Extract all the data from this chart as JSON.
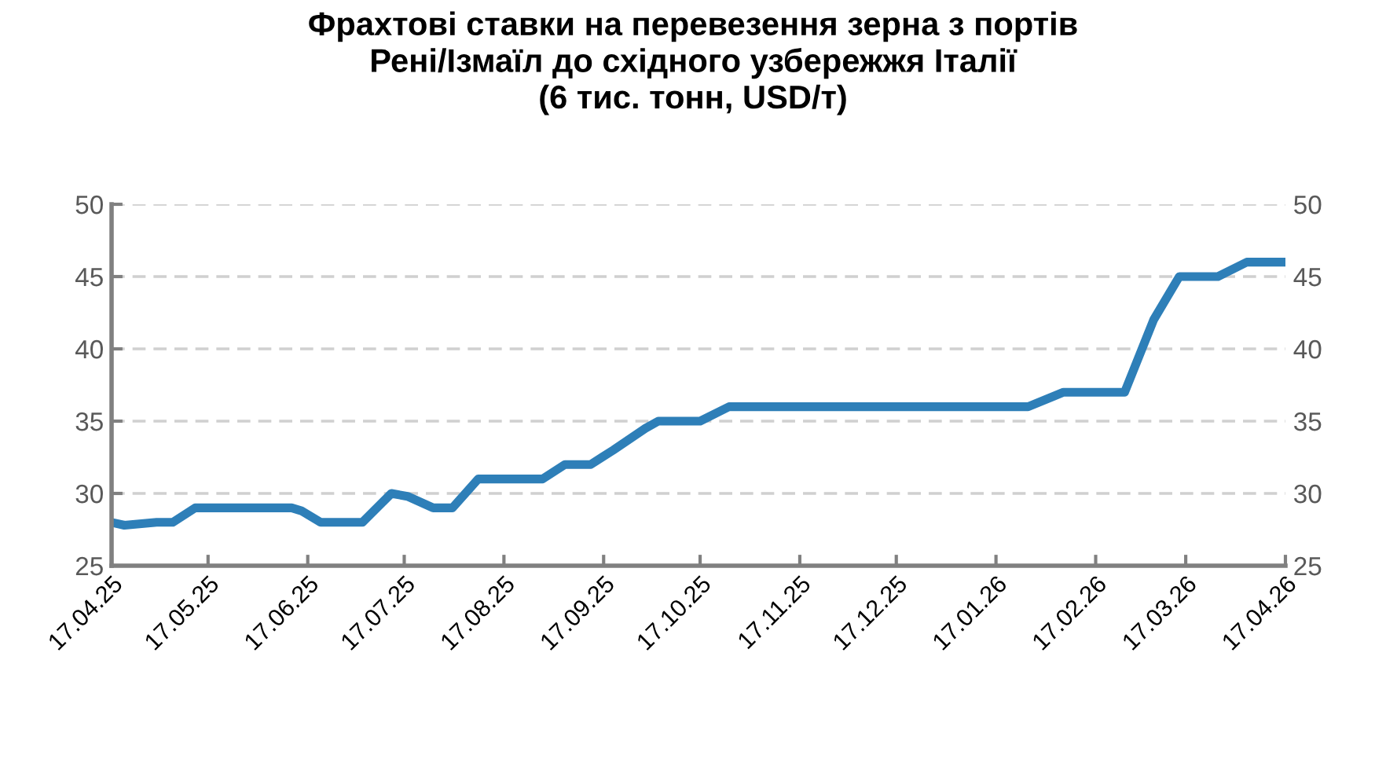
{
  "chart_data": {
    "type": "line",
    "title": "Фрахтові ставки на перевезення зерна з портів\nРені/Ізмаїл до східного узбережжя Італії\n(6 тис. тонн, USD/т)",
    "x": [
      "2025-04-17",
      "2025-04-21",
      "2025-05-01",
      "2025-05-06",
      "2025-05-13",
      "2025-05-26",
      "2025-06-12",
      "2025-06-15",
      "2025-06-21",
      "2025-06-29",
      "2025-07-04",
      "2025-07-13",
      "2025-07-18",
      "2025-07-26",
      "2025-08-01",
      "2025-08-09",
      "2025-08-17",
      "2025-08-29",
      "2025-09-05",
      "2025-09-13",
      "2025-09-20",
      "2025-09-30",
      "2025-10-04",
      "2025-10-17",
      "2025-10-26",
      "2026-01-27",
      "2026-02-07",
      "2026-02-21",
      "2026-02-26",
      "2026-03-07",
      "2026-03-15",
      "2026-03-27",
      "2026-04-05",
      "2026-04-17"
    ],
    "series": [
      {
        "color": "#2e7fb8",
        "values": [
          28,
          27.8,
          28,
          28,
          29,
          29,
          29,
          28.8,
          28,
          28,
          28,
          30,
          29.8,
          29,
          29,
          31,
          31,
          31,
          32,
          32,
          33,
          34.5,
          35,
          35,
          36,
          36,
          37,
          37,
          37,
          42,
          45,
          45,
          46,
          46
        ]
      }
    ],
    "xlim": [
      "2025-04-17",
      "2026-04-17"
    ],
    "xticks": [
      {
        "value": "2025-04-17",
        "label": "17.04.25"
      },
      {
        "value": "2025-05-17",
        "label": "17.05.25"
      },
      {
        "value": "2025-06-17",
        "label": "17.06.25"
      },
      {
        "value": "2025-07-17",
        "label": "17.07.25"
      },
      {
        "value": "2025-08-17",
        "label": "17.08.25"
      },
      {
        "value": "2025-09-17",
        "label": "17.09.25"
      },
      {
        "value": "2025-10-17",
        "label": "17.10.25"
      },
      {
        "value": "2025-11-17",
        "label": "17.11.25"
      },
      {
        "value": "2025-12-17",
        "label": "17.12.25"
      },
      {
        "value": "2026-01-17",
        "label": "17.01.26"
      },
      {
        "value": "2026-02-17",
        "label": "17.02.26"
      },
      {
        "value": "2026-03-17",
        "label": "17.03.26"
      },
      {
        "value": "2026-04-17",
        "label": "17.04.26"
      }
    ],
    "ylim": [
      25,
      50
    ],
    "yticks": [
      25,
      30,
      35,
      40,
      45,
      50
    ],
    "y2lim": [
      25,
      50
    ],
    "y2ticks": [
      25,
      30,
      35,
      40,
      45,
      50
    ],
    "grid": "y",
    "marker": "none",
    "line_style": "solid"
  }
}
